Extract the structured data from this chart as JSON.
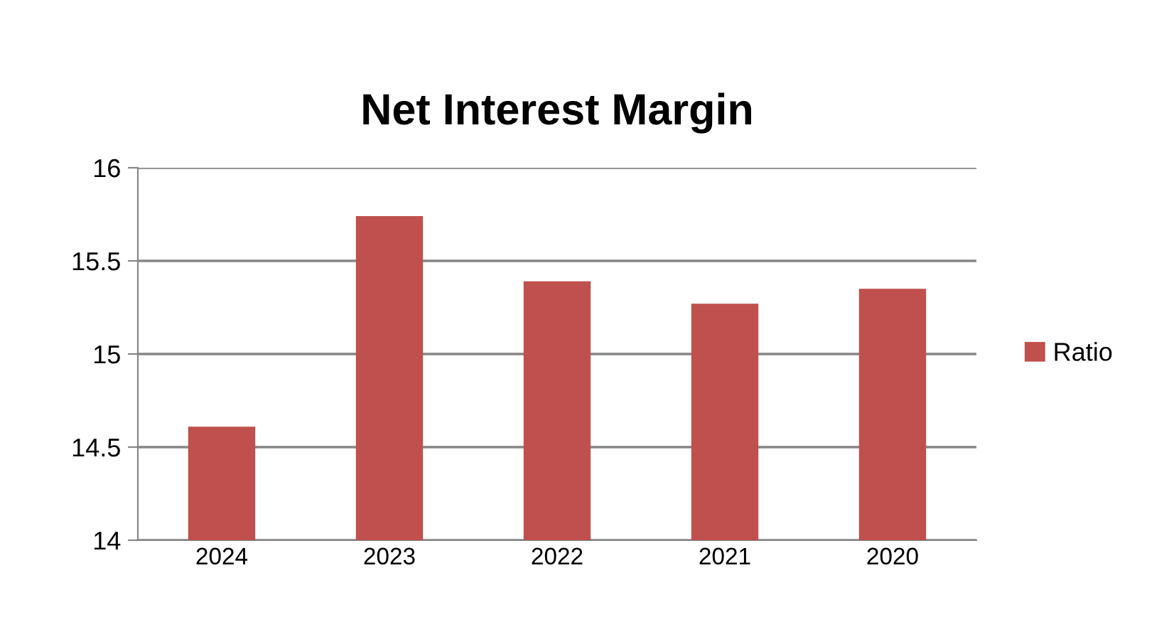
{
  "chart_data": {
    "type": "bar",
    "title": "Net Interest Margin",
    "categories": [
      "2024",
      "2023",
      "2022",
      "2021",
      "2020"
    ],
    "series": [
      {
        "name": "Ratio",
        "color": "#c0504d",
        "values": [
          14.61,
          15.74,
          15.39,
          15.27,
          15.35
        ]
      }
    ],
    "ylim": [
      14,
      16
    ],
    "yticks": [
      14,
      14.5,
      15,
      15.5,
      16
    ],
    "grid": "y",
    "legend": "right"
  }
}
